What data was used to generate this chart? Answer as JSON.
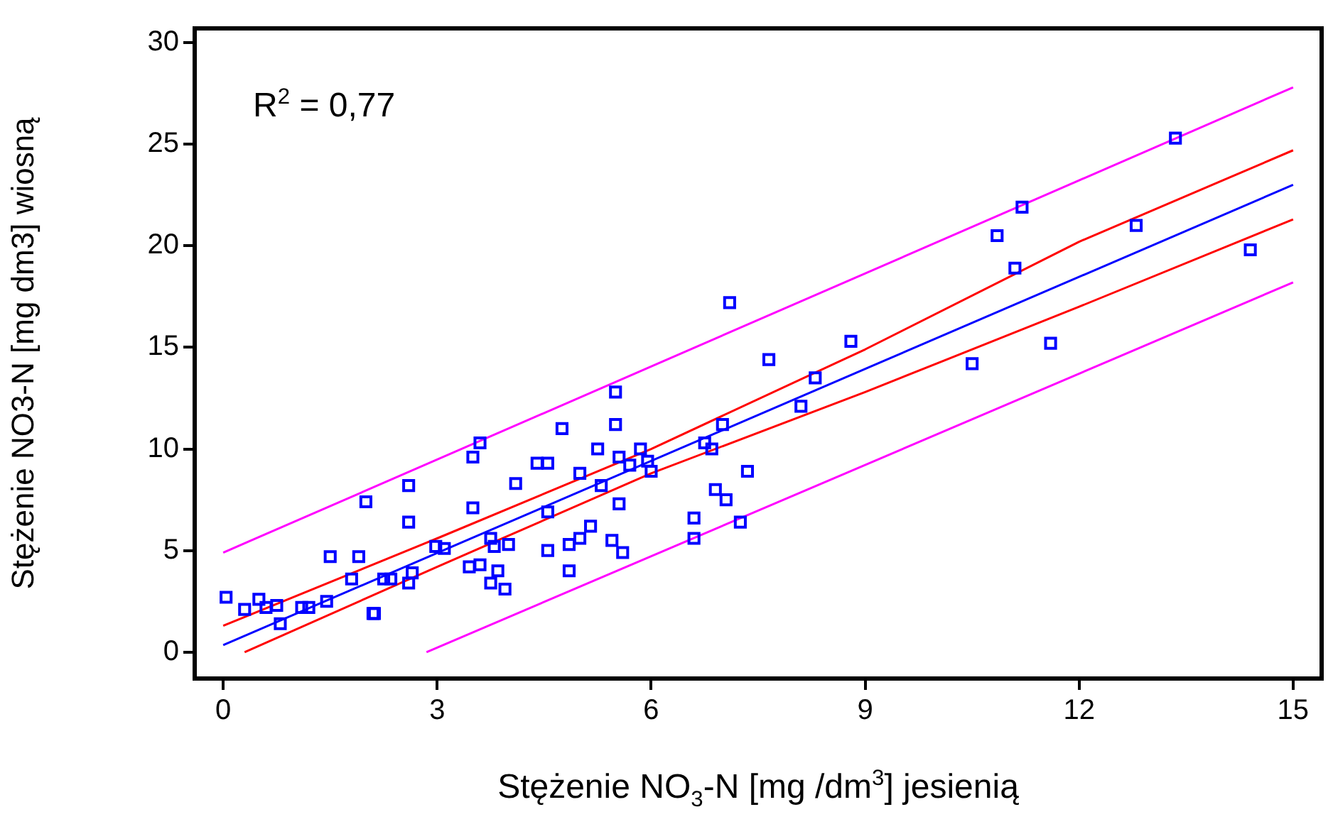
{
  "chart_data": {
    "type": "scatter",
    "xlabel": "Stężenie NO$_{3}$-N [mg /dm$^{3}$] jesienią",
    "ylabel": "Stężenie NO3-N [mg dm3] wiosną",
    "annotations": [
      "R$^{2}$ = 0,77"
    ],
    "xlim": [
      -0.4,
      15.4
    ],
    "ylim": [
      -1.3,
      30.7
    ],
    "xticks": [
      0,
      3,
      6,
      9,
      12,
      15
    ],
    "yticks": [
      0,
      5,
      10,
      15,
      20,
      25,
      30
    ],
    "grid": false,
    "legend": false,
    "series": [
      {
        "marker": "square",
        "color": "#0000ff",
        "x": [
          0.04,
          0.3,
          0.5,
          0.6,
          0.75,
          0.8,
          1.1,
          1.2,
          1.45,
          1.5,
          1.8,
          1.9,
          2.0,
          2.1,
          2.12,
          2.25,
          2.35,
          2.6,
          2.6,
          2.65,
          2.6,
          2.98,
          3.1,
          3.45,
          3.5,
          3.5,
          3.6,
          3.6,
          3.75,
          3.8,
          3.75,
          3.85,
          3.95,
          4.0,
          4.1,
          4.4,
          4.55,
          4.55,
          4.55,
          4.75,
          4.85,
          4.85,
          5.0,
          5.0,
          5.15,
          5.25,
          5.3,
          5.45,
          5.5,
          5.5,
          5.55,
          5.55,
          5.6,
          5.7,
          5.85,
          5.95,
          6.0,
          6.6,
          6.6,
          6.75,
          6.85,
          6.9,
          7.0,
          7.05,
          7.1,
          7.25,
          7.35,
          7.65,
          8.1,
          8.3,
          8.8,
          10.5,
          10.85,
          11.1,
          11.2,
          11.6,
          12.8,
          13.35,
          14.4
        ],
        "values": [
          2.7,
          2.1,
          2.6,
          2.2,
          2.3,
          1.4,
          2.2,
          2.2,
          2.5,
          4.7,
          3.6,
          4.7,
          7.4,
          1.9,
          1.9,
          3.6,
          3.6,
          8.2,
          3.4,
          3.9,
          6.4,
          5.2,
          5.1,
          4.2,
          7.1,
          9.6,
          10.3,
          4.3,
          5.6,
          5.2,
          3.4,
          4.0,
          3.1,
          5.3,
          8.3,
          9.3,
          9.3,
          6.9,
          5.0,
          11.0,
          5.3,
          4.0,
          8.8,
          5.6,
          6.2,
          10.0,
          8.2,
          5.5,
          12.8,
          11.2,
          7.3,
          9.6,
          4.9,
          9.2,
          10.0,
          9.4,
          8.9,
          6.6,
          5.6,
          10.3,
          10.0,
          8.0,
          11.2,
          7.5,
          17.2,
          6.4,
          8.9,
          14.4,
          12.1,
          13.5,
          15.3,
          14.2,
          20.5,
          18.9,
          21.9,
          15.2,
          21.0,
          25.3,
          19.8
        ]
      },
      {
        "type": "line",
        "marker": "none",
        "color": "#0000ff",
        "x": [
          0,
          15
        ],
        "values": [
          0.35,
          23.0
        ]
      },
      {
        "type": "line",
        "marker": "none",
        "color": "#ff0000",
        "x": [
          0,
          3,
          6,
          9,
          12,
          15
        ],
        "values": [
          1.3,
          5.6,
          10.0,
          14.9,
          20.2,
          24.7
        ]
      },
      {
        "type": "line",
        "marker": "none",
        "color": "#ff0000",
        "x": [
          0.3,
          3,
          6,
          9,
          12,
          15
        ],
        "values": [
          0.0,
          4.2,
          8.8,
          12.8,
          17.0,
          21.3
        ]
      },
      {
        "type": "line",
        "marker": "none",
        "color": "#ff00ff",
        "x": [
          0,
          15
        ],
        "values": [
          4.9,
          27.8
        ]
      },
      {
        "type": "line",
        "marker": "none",
        "color": "#ff00ff",
        "x": [
          2.85,
          15
        ],
        "values": [
          0.0,
          18.2
        ]
      }
    ]
  }
}
